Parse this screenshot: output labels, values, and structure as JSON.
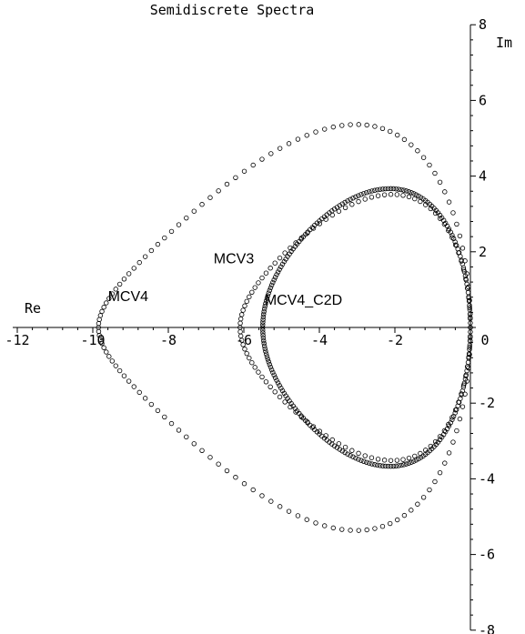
{
  "chart_data": {
    "type": "scatter",
    "title": "Semidiscrete Spectra",
    "xlabel": "Re",
    "ylabel": "Im",
    "xlim": [
      -12,
      0
    ],
    "ylim": [
      -8,
      8
    ],
    "x_ticks": [
      -12,
      -10,
      -8,
      -6,
      -4,
      -2,
      0
    ],
    "x_tick_labels": [
      "-12",
      "-10",
      "-8",
      "-6",
      "-4",
      "-2",
      "0"
    ],
    "y_ticks": [
      -8,
      -6,
      -4,
      -2,
      0,
      2,
      4,
      6,
      8
    ],
    "y_tick_labels": [
      "-8",
      "-6",
      "-4",
      "-2",
      "0",
      "2",
      "4",
      "6",
      "8"
    ],
    "grid": false,
    "series": [
      {
        "name": "MCV4",
        "points": 130,
        "re_min": -9.85,
        "re_max": 0.0,
        "im_max": 6.38,
        "im_at_re_max": 0.0,
        "shape": 0.55
      },
      {
        "name": "MCV3",
        "points": 110,
        "re_min": -6.1,
        "re_max": 0.0,
        "im_max": 4.08,
        "shape": 0.4
      },
      {
        "name": "MCV4_C2D",
        "points": 240,
        "re_min": -5.5,
        "re_max": 0.0,
        "im_max": 4.1,
        "shape": 0.25
      }
    ],
    "annotations": [
      {
        "text": "MCV4",
        "x": -9.6,
        "y": 0.7
      },
      {
        "text": "MCV3",
        "x": -6.8,
        "y": 1.7
      },
      {
        "text": "MCV4_C2D",
        "x": -5.45,
        "y": 0.6
      }
    ]
  }
}
